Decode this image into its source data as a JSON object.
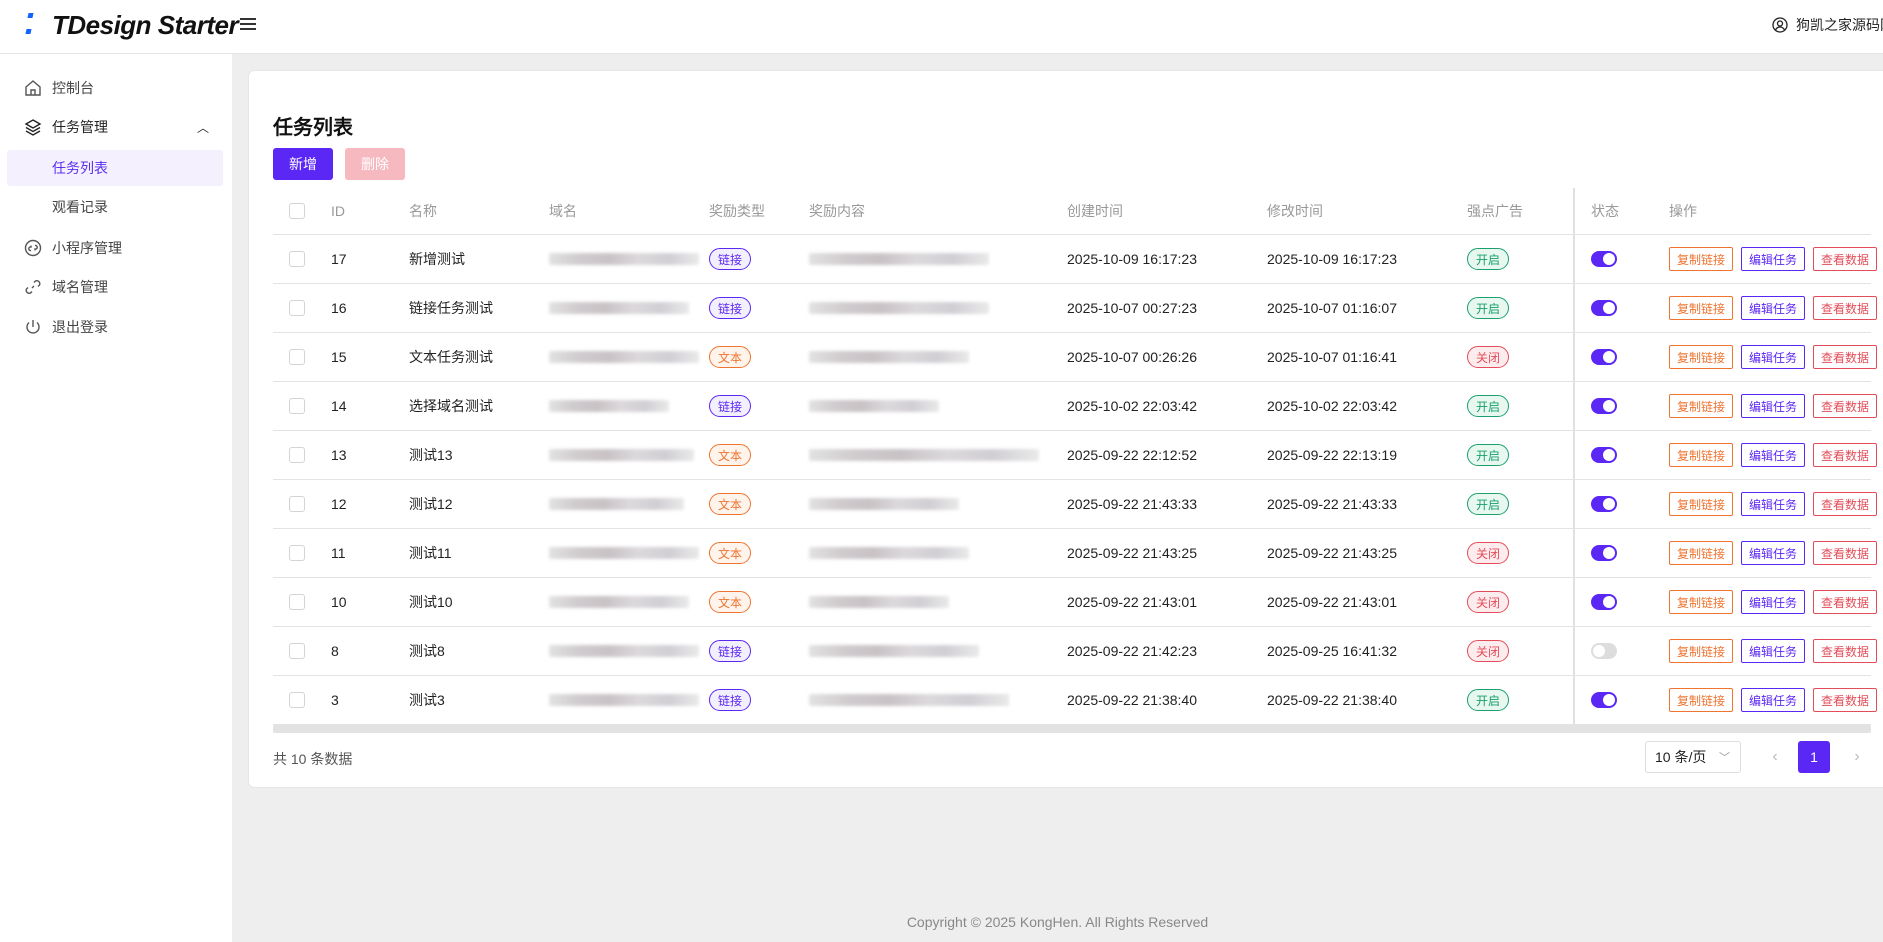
{
  "header": {
    "app_title": "TDesign Starter",
    "user_name": "狗凯之家源码网"
  },
  "sidebar": {
    "items": [
      {
        "label": "控制台",
        "icon": "home-icon"
      },
      {
        "label": "任务管理",
        "icon": "layers-icon",
        "expanded": true
      },
      {
        "label": "任务列表",
        "active": true
      },
      {
        "label": "观看记录"
      },
      {
        "label": "小程序管理",
        "icon": "miniprogram-icon"
      },
      {
        "label": "域名管理",
        "icon": "link-icon"
      },
      {
        "label": "退出登录",
        "icon": "power-icon"
      }
    ]
  },
  "main": {
    "title": "任务列表",
    "add_label": "新增",
    "delete_label": "删除"
  },
  "table": {
    "columns": [
      "ID",
      "名称",
      "域名",
      "奖励类型",
      "奖励内容",
      "创建时间",
      "修改时间",
      "强点广告",
      "状态",
      "操作"
    ],
    "actions": [
      "复制链接",
      "编辑任务",
      "查看数据"
    ],
    "rows": [
      {
        "id": "17",
        "name": "新增测试",
        "type": "链接",
        "type_kind": "link",
        "created": "2025-10-09 16:17:23",
        "modified": "2025-10-09 16:17:23",
        "ad": "开启",
        "ad_on": true,
        "status": true
      },
      {
        "id": "16",
        "name": "链接任务测试",
        "type": "链接",
        "type_kind": "link",
        "created": "2025-10-07 00:27:23",
        "modified": "2025-10-07 01:16:07",
        "ad": "开启",
        "ad_on": true,
        "status": true
      },
      {
        "id": "15",
        "name": "文本任务测试",
        "type": "文本",
        "type_kind": "text",
        "created": "2025-10-07 00:26:26",
        "modified": "2025-10-07 01:16:41",
        "ad": "关闭",
        "ad_on": false,
        "status": true
      },
      {
        "id": "14",
        "name": "选择域名测试",
        "type": "链接",
        "type_kind": "link",
        "created": "2025-10-02 22:03:42",
        "modified": "2025-10-02 22:03:42",
        "ad": "开启",
        "ad_on": true,
        "status": true
      },
      {
        "id": "13",
        "name": "测试13",
        "type": "文本",
        "type_kind": "text",
        "created": "2025-09-22 22:12:52",
        "modified": "2025-09-22 22:13:19",
        "ad": "开启",
        "ad_on": true,
        "status": true
      },
      {
        "id": "12",
        "name": "测试12",
        "type": "文本",
        "type_kind": "text",
        "created": "2025-09-22 21:43:33",
        "modified": "2025-09-22 21:43:33",
        "ad": "开启",
        "ad_on": true,
        "status": true
      },
      {
        "id": "11",
        "name": "测试11",
        "type": "文本",
        "type_kind": "text",
        "created": "2025-09-22 21:43:25",
        "modified": "2025-09-22 21:43:25",
        "ad": "关闭",
        "ad_on": false,
        "status": true
      },
      {
        "id": "10",
        "name": "测试10",
        "type": "文本",
        "type_kind": "text",
        "created": "2025-09-22 21:43:01",
        "modified": "2025-09-22 21:43:01",
        "ad": "关闭",
        "ad_on": false,
        "status": true
      },
      {
        "id": "8",
        "name": "测试8",
        "type": "链接",
        "type_kind": "link",
        "created": "2025-09-22 21:42:23",
        "modified": "2025-09-25 16:41:32",
        "ad": "关闭",
        "ad_on": false,
        "status": false
      },
      {
        "id": "3",
        "name": "测试3",
        "type": "链接",
        "type_kind": "link",
        "created": "2025-09-22 21:38:40",
        "modified": "2025-09-22 21:38:40",
        "ad": "开启",
        "ad_on": true,
        "status": true
      }
    ]
  },
  "pagination": {
    "total_text": "共 10 条数据",
    "page_size": "10 条/页",
    "current_page": "1"
  },
  "footer": {
    "copyright": "Copyright © 2025 KongHen. All Rights Reserved"
  },
  "colors": {
    "primary": "#5b27f5",
    "danger_light": "#f6b9c0",
    "success": "#1aa06d",
    "warning": "#ee7430",
    "error": "#e34d59"
  }
}
